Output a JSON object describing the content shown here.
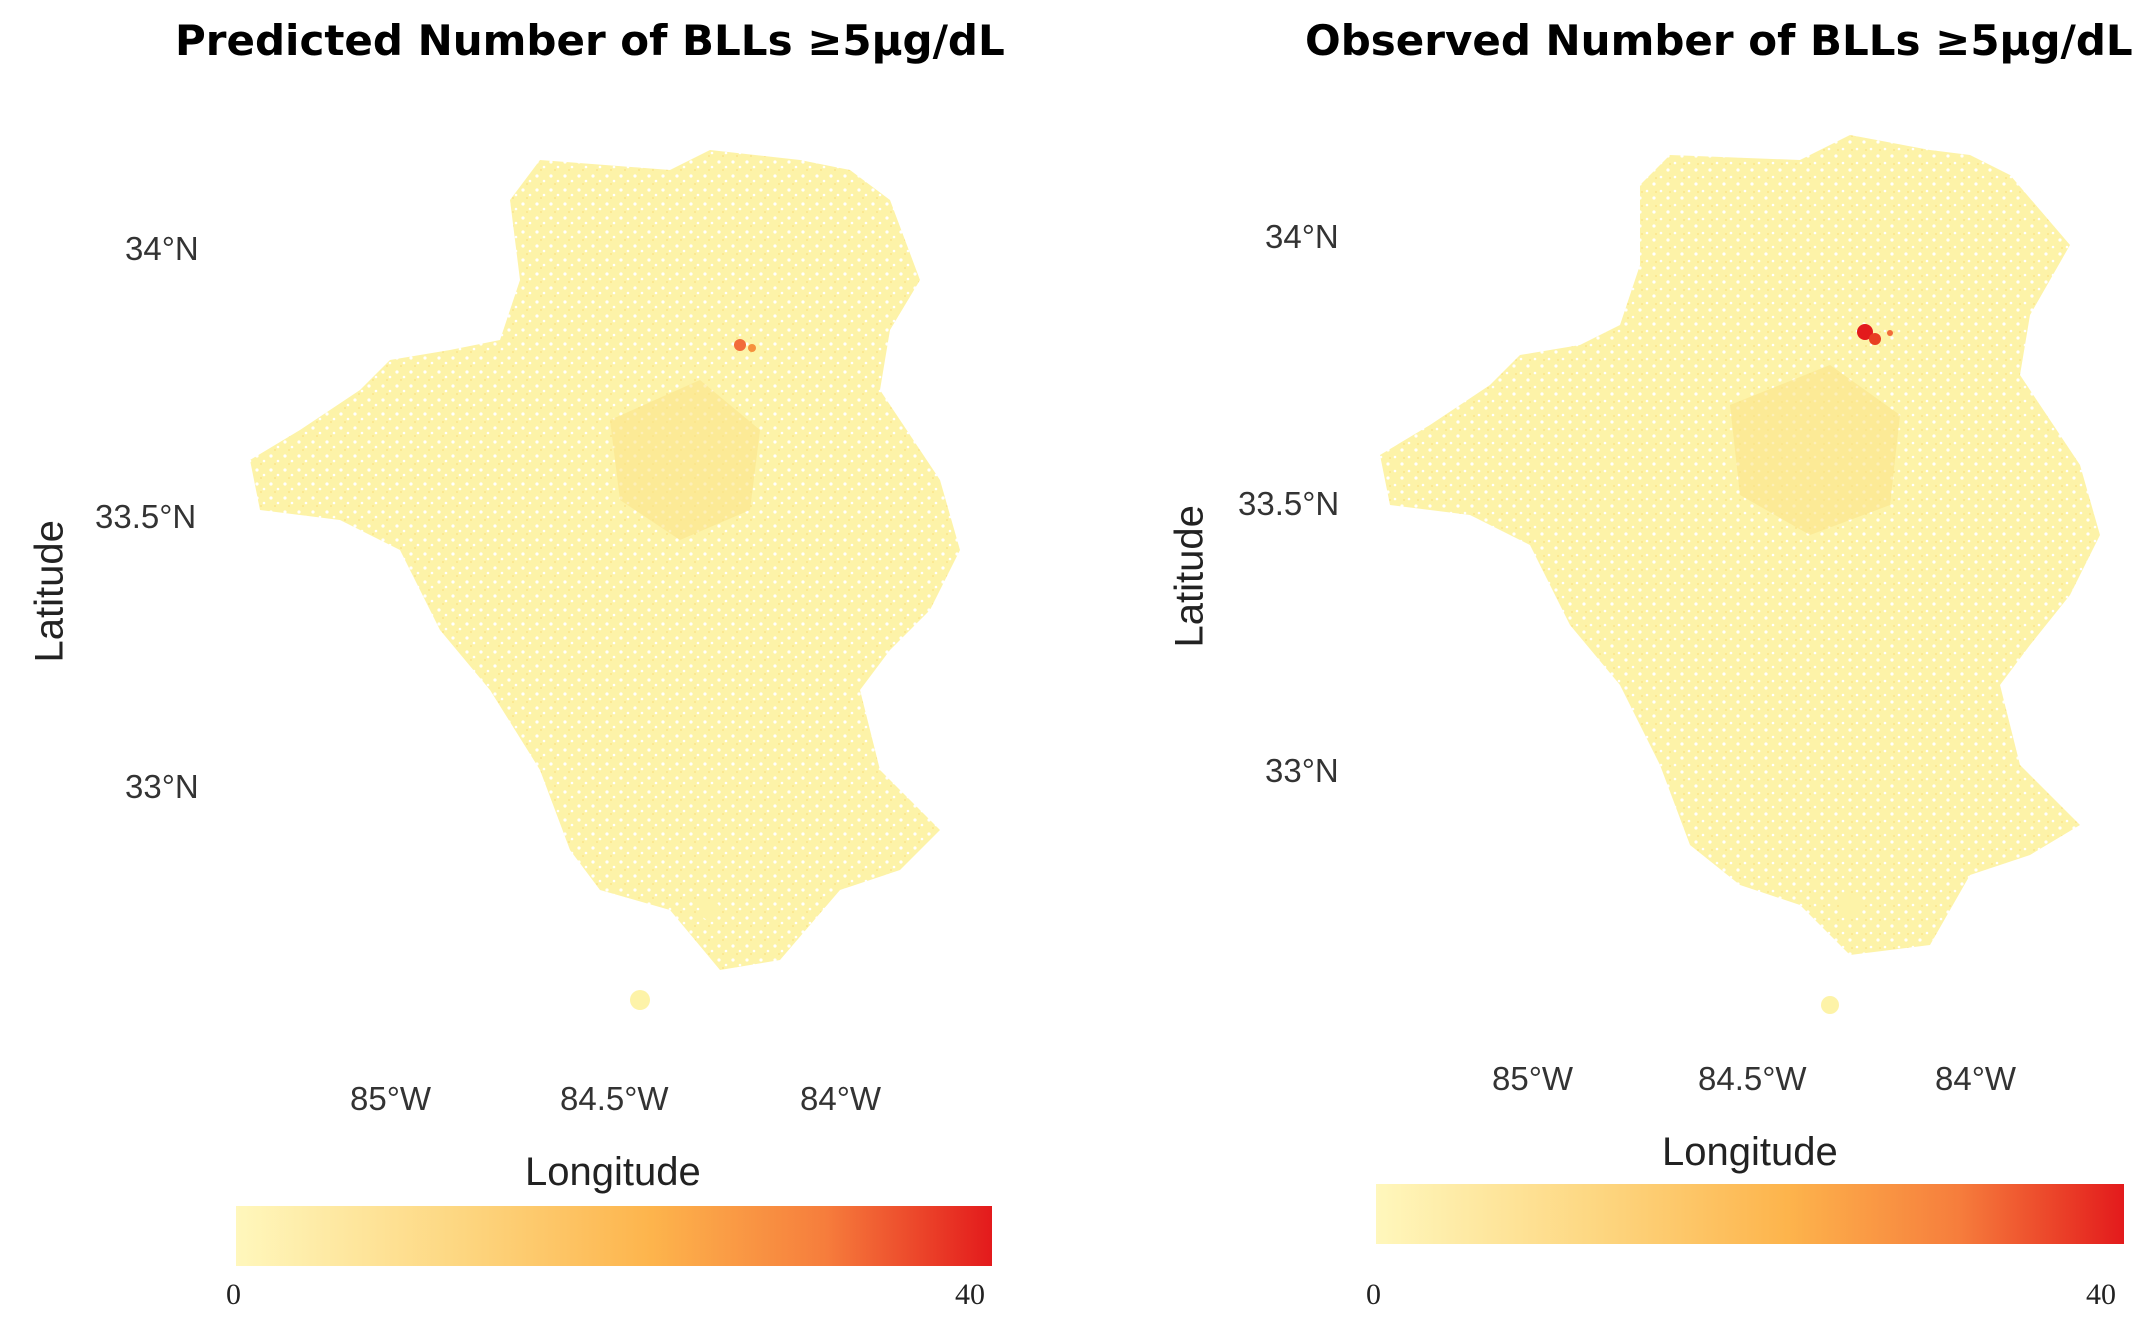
{
  "maps": [
    {
      "title": "Predicted Number of BLLs ≥5μg/dL",
      "lat_axis_title": "Latitude",
      "lon_axis_title": "Longitude",
      "lat_ticks": [
        "34°N",
        "33.5°N",
        "33°N"
      ],
      "lon_ticks": [
        "85°W",
        "84.5°W",
        "84°W"
      ],
      "legend": {
        "min_label": "0",
        "max_label": "40"
      }
    },
    {
      "title": "Observed Number of BLLs ≥5μg/dL",
      "lat_axis_title": "Latitude",
      "lon_axis_title": "Longitude",
      "lat_ticks": [
        "34°N",
        "33.5°N",
        "33°N"
      ],
      "lon_ticks": [
        "85°W",
        "84.5°W",
        "84°W"
      ],
      "legend": {
        "min_label": "0",
        "max_label": "40"
      }
    }
  ],
  "colors": {
    "scale_low": "#fff7bc",
    "scale_mid": "#fdb44c",
    "scale_high": "#e31a1c",
    "region_fill": "#fdf3a8",
    "region_mid": "#fbe58a"
  }
}
